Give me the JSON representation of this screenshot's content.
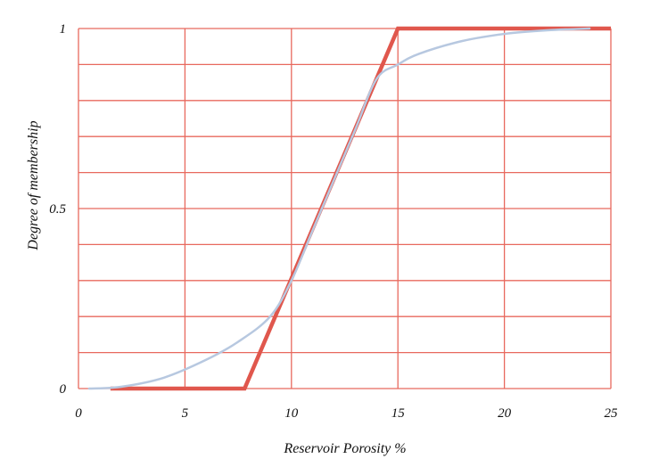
{
  "chart_data": {
    "type": "line",
    "xlabel": "Reservoir Porosity %",
    "ylabel": "Degree of membership",
    "xlim": [
      0,
      25
    ],
    "ylim": [
      0,
      1
    ],
    "x_ticks": [
      0,
      5,
      10,
      15,
      20,
      25
    ],
    "x_tick_labels": [
      "0",
      "5",
      "10",
      "15",
      "20",
      "25"
    ],
    "y_ticks": [
      0,
      0.5,
      1
    ],
    "y_tick_labels": [
      "0",
      "0.5",
      "1"
    ],
    "x_grid": [
      0,
      5,
      10,
      15,
      20,
      25
    ],
    "y_grid": [
      0,
      0.1,
      0.2,
      0.3,
      0.4,
      0.5,
      0.6,
      0.7,
      0.8,
      0.9,
      1
    ],
    "grid": true,
    "grid_color": "#e8695e",
    "series": [
      {
        "kind": "piecewise-linear",
        "color": "#e0574d",
        "x": [
          1.5,
          7.8,
          15,
          25
        ],
        "y": [
          0,
          0,
          1,
          1
        ]
      },
      {
        "kind": "smooth",
        "color": "#b7c8e0",
        "x": [
          0.5,
          2,
          4,
          6,
          7.5,
          9,
          10,
          11,
          12,
          13,
          14,
          15,
          16,
          18,
          20,
          22,
          24
        ],
        "y": [
          0,
          0.005,
          0.03,
          0.08,
          0.13,
          0.2,
          0.3,
          0.44,
          0.58,
          0.72,
          0.86,
          0.9,
          0.93,
          0.965,
          0.985,
          0.995,
          1
        ]
      }
    ]
  }
}
